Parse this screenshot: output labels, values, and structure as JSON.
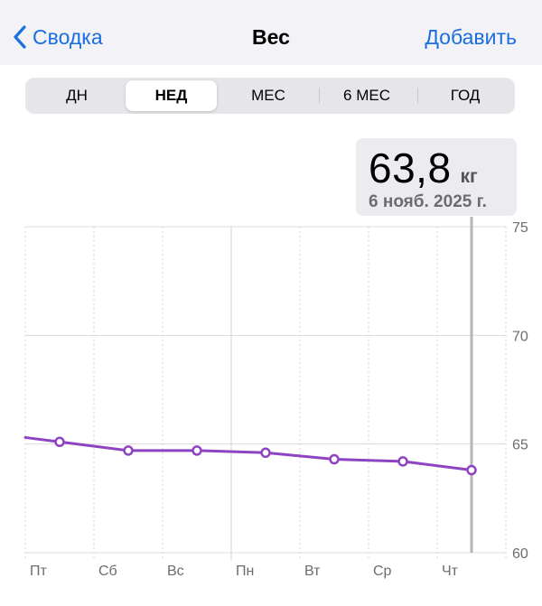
{
  "nav": {
    "back_label": "Сводка",
    "title": "Вес",
    "add_label": "Добавить",
    "accent_color": "#1a6fe0"
  },
  "segments": {
    "items": [
      "ДН",
      "НЕД",
      "МЕС",
      "6 МЕС",
      "ГОД"
    ],
    "active": "НЕД"
  },
  "callout": {
    "value": "63,8",
    "unit": "кг",
    "date": "6 нояб. 2025 г."
  },
  "chart_data": {
    "type": "line",
    "categories": [
      "Пт",
      "Сб",
      "Вс",
      "Пн",
      "Вт",
      "Ср",
      "Чт"
    ],
    "x": [
      0,
      1,
      2,
      3,
      4,
      5,
      6
    ],
    "values": [
      65.1,
      64.7,
      64.7,
      64.6,
      64.3,
      64.2,
      63.8
    ],
    "line_start_value": 65.3,
    "ylim": [
      60,
      75
    ],
    "yticks": [
      60,
      65,
      70,
      75
    ],
    "selected_index": 6,
    "line_color": "#8e44c2",
    "grid": true,
    "title": "",
    "xlabel": "",
    "ylabel": ""
  }
}
